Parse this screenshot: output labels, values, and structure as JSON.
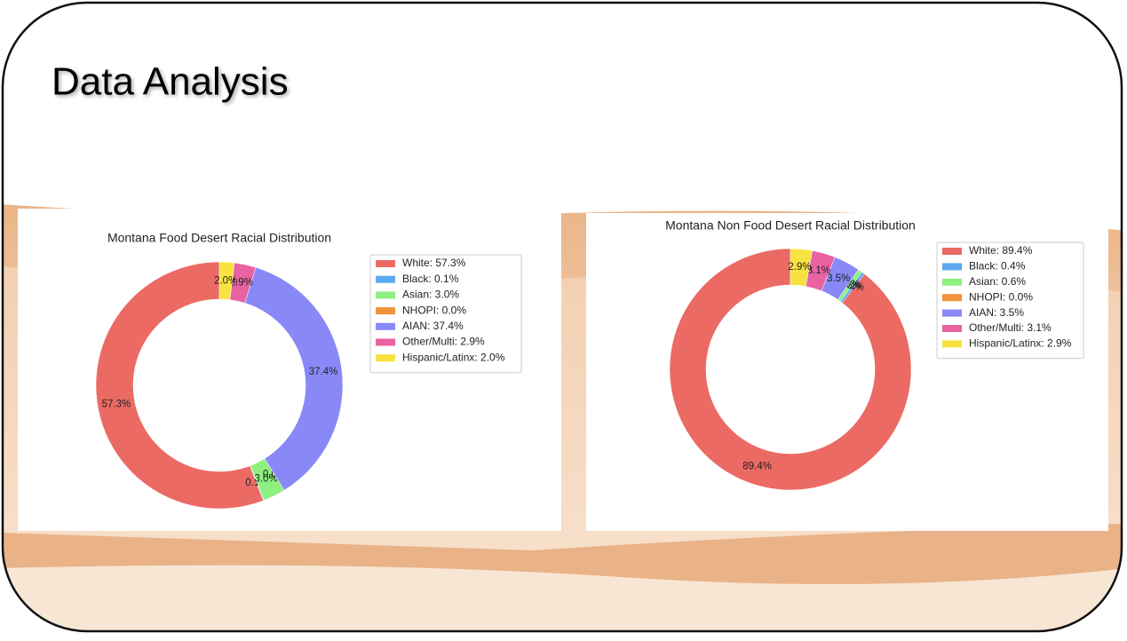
{
  "title": "Data Analysis",
  "chart_data": [
    {
      "type": "pie",
      "title": "Montana Food Desert Racial Distribution",
      "categories": [
        "White",
        "Black",
        "Asian",
        "NHOPI",
        "AIAN",
        "Other/Multi",
        "Hispanic/Latinx"
      ],
      "values": [
        57.3,
        0.1,
        3.0,
        0.0,
        37.4,
        2.9,
        2.0
      ],
      "value_labels": [
        "57.3%",
        "0.1%",
        "3.0%",
        "0.0%",
        "37.4%",
        "2.9%",
        "2.0%"
      ],
      "legend_labels": [
        "White: 57.3%",
        "Black: 0.1%",
        "Asian: 3.0%",
        "NHOPI: 0.0%",
        "AIAN: 37.4%",
        "Other/Multi: 2.9%",
        "Hispanic/Latinx: 2.0%"
      ],
      "colors": [
        "#ec6a64",
        "#5ca9f0",
        "#8ef080",
        "#f0933c",
        "#8889f7",
        "#e962a2",
        "#f8e23f"
      ],
      "legend": "right"
    },
    {
      "type": "pie",
      "title": "Montana Non Food Desert Racial Distribution",
      "categories": [
        "White",
        "Black",
        "Asian",
        "NHOPI",
        "AIAN",
        "Other/Multi",
        "Hispanic/Latinx"
      ],
      "values": [
        89.4,
        0.4,
        0.6,
        0.0,
        3.5,
        3.1,
        2.9
      ],
      "value_labels": [
        "89.4%",
        "0.4%",
        "0.6%",
        "0.0%",
        "3.5%",
        "3.1%",
        "2.9%"
      ],
      "legend_labels": [
        "White: 89.4%",
        "Black: 0.4%",
        "Asian: 0.6%",
        "NHOPI: 0.0%",
        "AIAN: 3.5%",
        "Other/Multi: 3.1%",
        "Hispanic/Latinx: 2.9%"
      ],
      "colors": [
        "#ec6a64",
        "#5ca9f0",
        "#8ef080",
        "#f0933c",
        "#8889f7",
        "#e962a2",
        "#f8e23f"
      ],
      "legend": "right"
    }
  ]
}
